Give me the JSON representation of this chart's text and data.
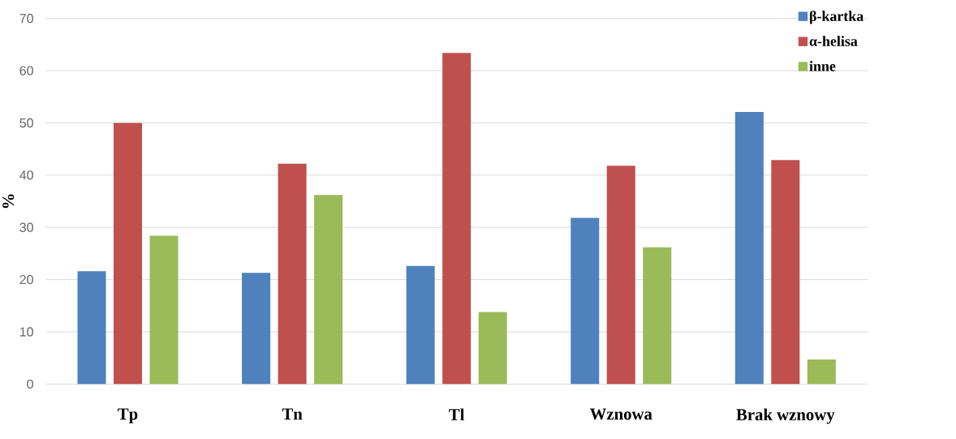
{
  "chart_data": {
    "type": "bar",
    "ylabel": "%",
    "categories": [
      "Tp",
      "Tn",
      "Tl",
      "Wznowa",
      "Brak wznowy"
    ],
    "series": [
      {
        "name": "β-kartka",
        "color": "#4f81bd",
        "values": [
          21.6,
          21.3,
          22.6,
          31.8,
          52.1
        ]
      },
      {
        "name": "α-helisa",
        "color": "#c0504d",
        "values": [
          50.0,
          42.2,
          63.4,
          41.8,
          42.9
        ]
      },
      {
        "name": "inne",
        "color": "#9bbb59",
        "values": [
          28.4,
          36.2,
          13.8,
          26.2,
          4.7
        ]
      }
    ],
    "ylim": [
      0,
      70
    ],
    "yticks": [
      0,
      10,
      20,
      30,
      40,
      50,
      60,
      70
    ],
    "grid": "y",
    "legend": "top right"
  }
}
